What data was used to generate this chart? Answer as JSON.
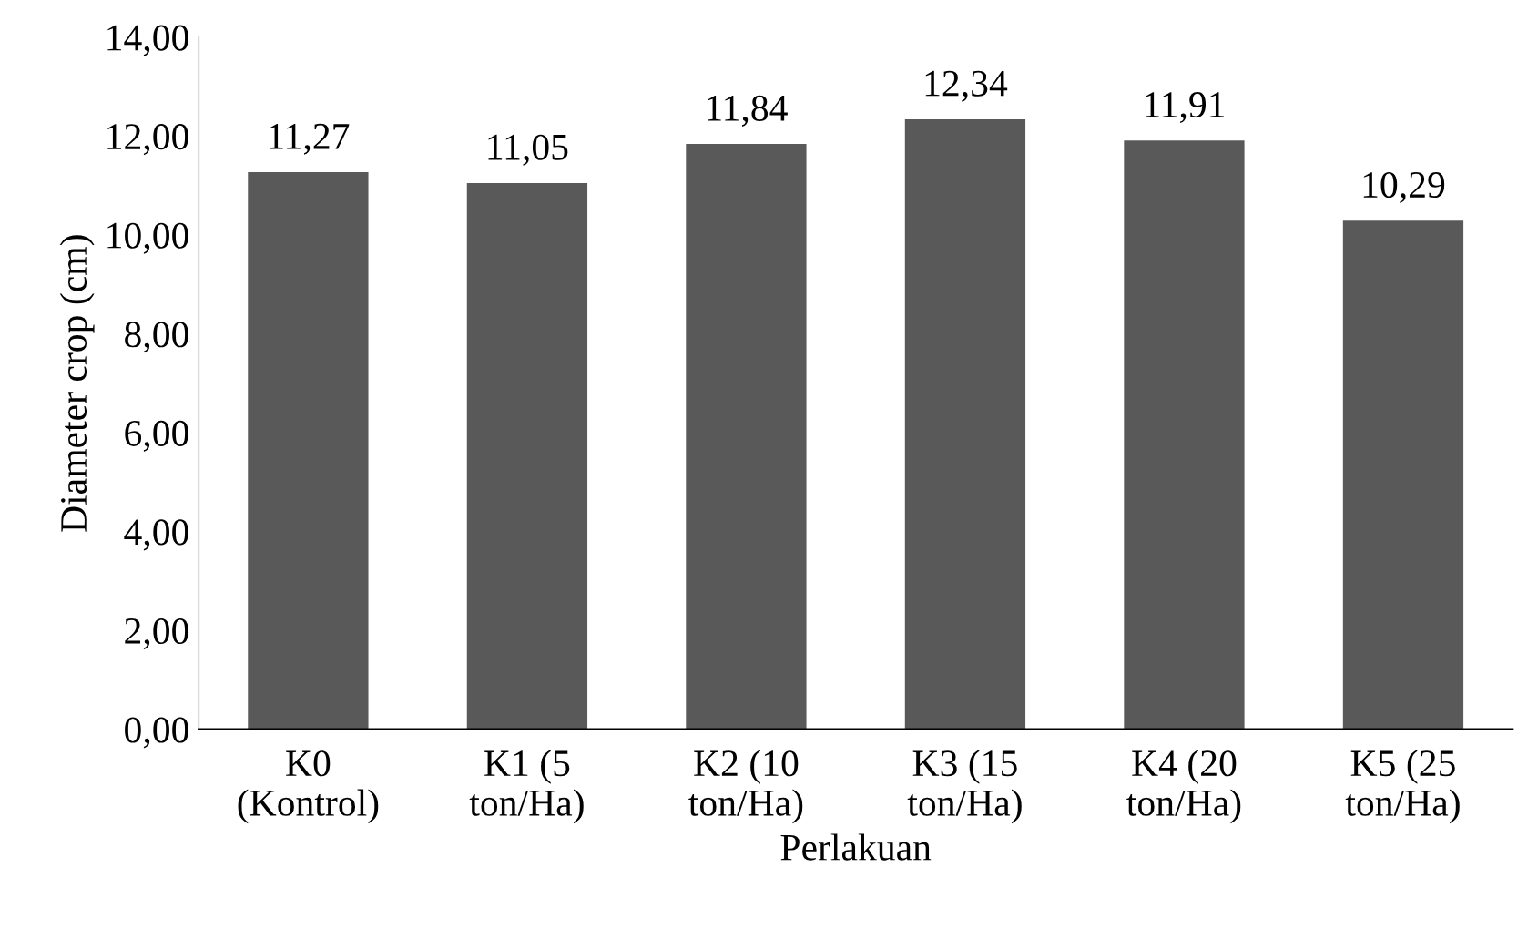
{
  "chart_data": {
    "type": "bar",
    "categories": [
      "K0\n(Kontrol)",
      "K1 (5\nton/Ha)",
      "K2 (10\nton/Ha)",
      "K3 (15\nton/Ha)",
      "K4 (20\nton/Ha)",
      "K5 (25\nton/Ha)"
    ],
    "values": [
      11.27,
      11.05,
      11.84,
      12.34,
      11.91,
      10.29
    ],
    "value_labels": [
      "11,27",
      "11,05",
      "11,84",
      "12,34",
      "11,91",
      "10,29"
    ],
    "color": "#595959",
    "xlabel": "Perlakuan",
    "ylabel": "Diameter crop (cm)",
    "ylim": [
      0,
      14
    ],
    "yticks": [
      {
        "value": 0,
        "label": "0,00"
      },
      {
        "value": 2,
        "label": "2,00"
      },
      {
        "value": 4,
        "label": "4,00"
      },
      {
        "value": 6,
        "label": "6,00"
      },
      {
        "value": 8,
        "label": "8,00"
      },
      {
        "value": 10,
        "label": "10,00"
      },
      {
        "value": 12,
        "label": "12,00"
      },
      {
        "value": 14,
        "label": "14,00"
      }
    ],
    "grid": false,
    "legend": false
  }
}
